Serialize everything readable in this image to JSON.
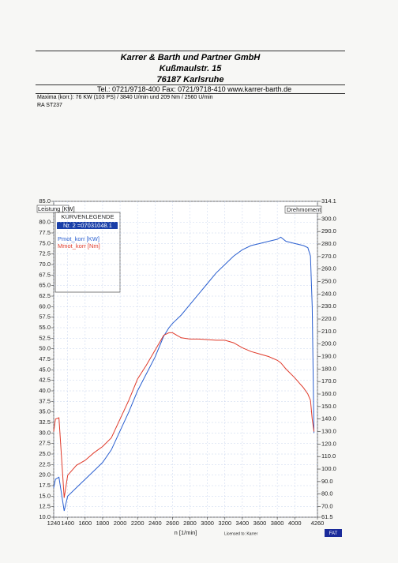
{
  "header": {
    "company": "Karrer & Barth und Partner GmbH",
    "street": "Kußmaulstr. 15",
    "city": "76187 Karlsruhe",
    "contact": "Tel.: 0721/9718-400   Fax: 0721/9718-410  www.karrer-barth.de",
    "maxima": "Maxima (korr.):  76 KW (103 PS) /  3840 U/min  und   209 Nm /  2560 U/min",
    "vehicle": "RA ST237"
  },
  "chart_data": {
    "type": "line",
    "y_label": "Leistung [KW]",
    "y2_label": "Drehmoment",
    "x_label": "n [1/min]",
    "legend_title": "KURVENLEGENDE",
    "legend_run": "Nr. 2 =07031048.1",
    "footer": "Licensed to: Karrer",
    "badge": "FAT",
    "grid": true,
    "x": [
      1240,
      1260,
      1300,
      1360,
      1400,
      1500,
      1600,
      1700,
      1800,
      1900,
      2000,
      2100,
      2200,
      2300,
      2400,
      2500,
      2560,
      2600,
      2700,
      2800,
      2900,
      3000,
      3100,
      3200,
      3300,
      3400,
      3500,
      3600,
      3700,
      3800,
      3840,
      3900,
      4000,
      4100,
      4150,
      4180,
      4200,
      4220
    ],
    "series": [
      {
        "name": "Pmot_korr [KW]",
        "color": "#2a5fd0",
        "axis": "y",
        "values": [
          17,
          19,
          19.5,
          11.5,
          15,
          17,
          19,
          21,
          23,
          26,
          30.5,
          35,
          40,
          44,
          48,
          53,
          55,
          56,
          58,
          60.5,
          63,
          65.5,
          68,
          70,
          72,
          73.5,
          74.5,
          75,
          75.5,
          76,
          76.5,
          75.5,
          75,
          74.5,
          74,
          72,
          60,
          30
        ]
      },
      {
        "name": "Mmot_korr [Nm]",
        "color": "#e03a2a",
        "axis": "y2",
        "values": [
          130,
          140,
          141,
          77,
          95,
          103,
          107,
          113,
          118,
          125,
          140,
          155,
          172,
          183,
          195,
          207,
          209,
          209,
          205,
          204,
          204,
          203.5,
          203,
          203,
          201,
          197,
          194,
          192,
          190,
          187,
          185,
          180,
          173,
          165,
          160,
          155,
          140,
          130
        ]
      }
    ],
    "xlim": [
      1240,
      4260
    ],
    "xticks": [
      1240,
      1400,
      1600,
      1800,
      2000,
      2200,
      2400,
      2600,
      2800,
      3000,
      3200,
      3400,
      3600,
      3800,
      4000,
      4260
    ],
    "ylim": [
      10,
      85
    ],
    "yticks": [
      {
        "value": 10,
        "label": "10.0"
      },
      12.5,
      {
        "value": 15,
        "label": "15.0"
      },
      17.5,
      {
        "value": 20,
        "label": "20.0"
      },
      22.5,
      {
        "value": 25,
        "label": "25.0"
      },
      27.5,
      {
        "value": 30,
        "label": "30.0"
      },
      32.5,
      {
        "value": 35,
        "label": "35.0"
      },
      37.5,
      {
        "value": 40,
        "label": "40.0"
      },
      42.5,
      {
        "value": 45,
        "label": "45.0"
      },
      47.5,
      {
        "value": 50,
        "label": "50.0"
      },
      52.5,
      {
        "value": 55,
        "label": "55.0"
      },
      57.5,
      {
        "value": 60,
        "label": "60.0"
      },
      62.5,
      {
        "value": 65,
        "label": "65.0"
      },
      67.5,
      {
        "value": 70,
        "label": "70.0"
      },
      72.5,
      {
        "value": 75,
        "label": "75.0"
      },
      77.5,
      {
        "value": 80,
        "label": "80.0"
      },
      {
        "value": 85,
        "label": "85.0"
      }
    ],
    "y2lim": [
      61.5,
      314.1
    ],
    "y2ticks": [
      61.5,
      {
        "value": 70,
        "label": "70.0"
      },
      {
        "value": 80,
        "label": "80.0"
      },
      {
        "value": 90,
        "label": "90.0"
      },
      {
        "value": 100,
        "label": "100.0"
      },
      {
        "value": 110,
        "label": "110.0"
      },
      {
        "value": 120,
        "label": "120.0"
      },
      {
        "value": 130,
        "label": "130.0"
      },
      {
        "value": 140,
        "label": "140.0"
      },
      {
        "value": 150,
        "label": "150.0"
      },
      {
        "value": 160,
        "label": "160.0"
      },
      {
        "value": 170,
        "label": "170.0"
      },
      {
        "value": 180,
        "label": "180.0"
      },
      {
        "value": 190,
        "label": "190.0"
      },
      {
        "value": 200,
        "label": "200.0"
      },
      {
        "value": 210,
        "label": "210.0"
      },
      {
        "value": 220,
        "label": "220.0"
      },
      {
        "value": 230,
        "label": "230.0"
      },
      {
        "value": 240,
        "label": "240.0"
      },
      {
        "value": 250,
        "label": "250.0"
      },
      {
        "value": 260,
        "label": "260.0"
      },
      {
        "value": 270,
        "label": "270.0"
      },
      {
        "value": 280,
        "label": "280.0"
      },
      {
        "value": 290,
        "label": "290.0"
      },
      {
        "value": 300,
        "label": "300.0"
      },
      314.1
    ]
  }
}
